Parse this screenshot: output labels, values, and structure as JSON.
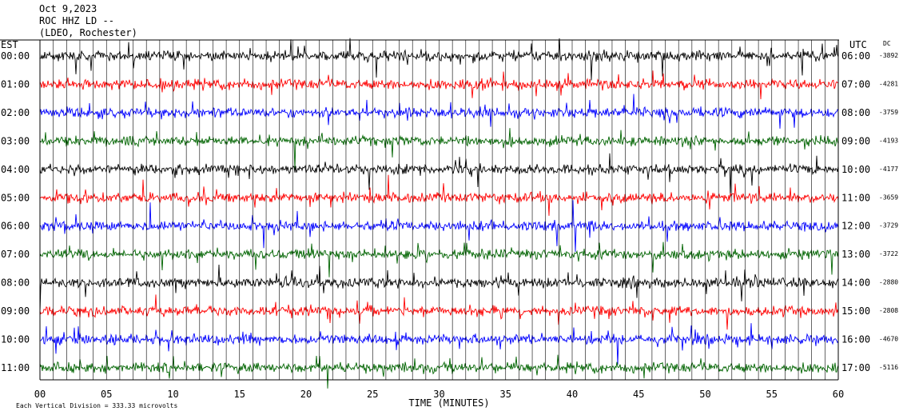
{
  "header": {
    "date": "Oct 9,2023",
    "station": "ROC HHZ LD --",
    "network": "(LDEO, Rochester)"
  },
  "labels": {
    "left_tz": "EST",
    "right_tz": "UTC",
    "dc": "DC",
    "footer": "Each Vertical Division =  333.33 microvolts"
  },
  "colors": {
    "row_cycle": [
      "#000000",
      "#ff0000",
      "#0000ff",
      "#006400"
    ],
    "grid": "#000000"
  },
  "chart_data": {
    "type": "line",
    "title": "",
    "xlabel": "TIME (MINUTES)",
    "ylabel": "",
    "xlim": [
      0,
      60
    ],
    "x_ticks": [
      "00",
      "05",
      "10",
      "15",
      "20",
      "25",
      "30",
      "35",
      "40",
      "45",
      "50",
      "55",
      "60"
    ],
    "rows": [
      {
        "est": "00:00",
        "utc": "06:00",
        "dc": "-3892",
        "color": "#000000"
      },
      {
        "est": "01:00",
        "utc": "07:00",
        "dc": "-4281",
        "color": "#ff0000"
      },
      {
        "est": "02:00",
        "utc": "08:00",
        "dc": "-3759",
        "color": "#0000ff"
      },
      {
        "est": "03:00",
        "utc": "09:00",
        "dc": "-4193",
        "color": "#006400"
      },
      {
        "est": "04:00",
        "utc": "10:00",
        "dc": "-4177",
        "color": "#000000"
      },
      {
        "est": "05:00",
        "utc": "11:00",
        "dc": "-3659",
        "color": "#ff0000"
      },
      {
        "est": "06:00",
        "utc": "12:00",
        "dc": "-3729",
        "color": "#0000ff"
      },
      {
        "est": "07:00",
        "utc": "13:00",
        "dc": "-3722",
        "color": "#006400"
      },
      {
        "est": "08:00",
        "utc": "14:00",
        "dc": "-2880",
        "color": "#000000"
      },
      {
        "est": "09:00",
        "utc": "15:00",
        "dc": "-2808",
        "color": "#ff0000"
      },
      {
        "est": "10:00",
        "utc": "16:00",
        "dc": "-4670",
        "color": "#0000ff"
      },
      {
        "est": "11:00",
        "utc": "17:00",
        "dc": "-5116",
        "color": "#006400"
      }
    ]
  }
}
